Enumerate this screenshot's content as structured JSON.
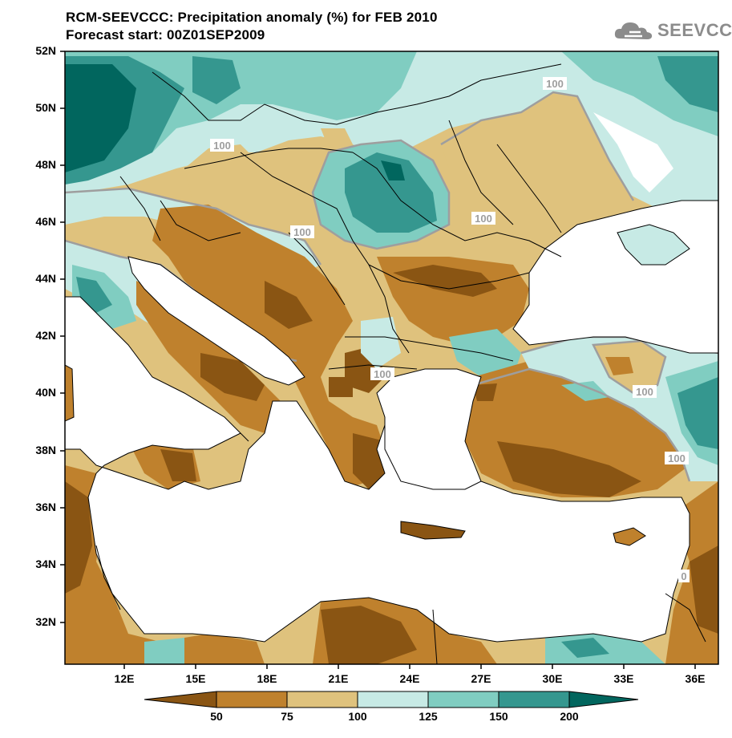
{
  "title": {
    "line1": "RCM-SEEVCCC: Precipitation anomaly (%) for FEB 2010",
    "line2": "Forecast start: 00Z01SEP2009"
  },
  "logo": {
    "text": "SEEVCCC",
    "icon": "cloud-icon"
  },
  "map": {
    "type": "filled-contour-map",
    "variable": "Precipitation anomaly (%)",
    "lat_range": [
      30.5,
      52
    ],
    "lon_range": [
      9.5,
      37
    ],
    "y_axis_labels": [
      "52N",
      "50N",
      "48N",
      "46N",
      "44N",
      "42N",
      "40N",
      "38N",
      "36N",
      "34N",
      "32N"
    ],
    "x_axis_labels": [
      "12E",
      "15E",
      "18E",
      "21E",
      "24E",
      "27E",
      "30E",
      "33E",
      "36E"
    ],
    "contour_labels": [
      "100",
      "100",
      "100",
      "100",
      "100",
      "100",
      "100",
      "0"
    ]
  },
  "colorbar": {
    "levels": [
      "50",
      "75",
      "100",
      "125",
      "150",
      "200"
    ],
    "colors": [
      "#8a5513",
      "#bf812d",
      "#dfc27d",
      "#c7eae5",
      "#80cdc1",
      "#35978f",
      "#01665e"
    ]
  }
}
